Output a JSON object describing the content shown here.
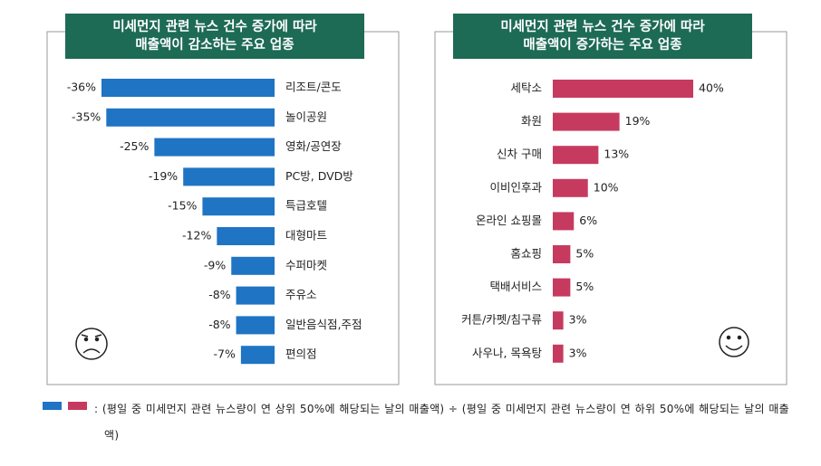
{
  "chart_data": [
    {
      "type": "bar",
      "orientation": "horizontal",
      "title": [
        "미세먼지 관련 뉴스 건수 증가에 따라",
        "매출액이 감소하는 주요 업종"
      ],
      "categories": [
        "리조트/콘도",
        "놀이공원",
        "영화/공연장",
        "PC방, DVD방",
        "특급호텔",
        "대형마트",
        "수퍼마켓",
        "주유소",
        "일반음식점,주점",
        "편의점"
      ],
      "values": [
        -36,
        -35,
        -25,
        -19,
        -15,
        -12,
        -9,
        -8,
        -8,
        -7
      ],
      "value_labels": [
        "-36%",
        "-35%",
        "-25%",
        "-19%",
        "-15%",
        "-12%",
        "-9%",
        "-8%",
        "-8%",
        "-7%"
      ],
      "color": "#1f74c4"
    },
    {
      "type": "bar",
      "orientation": "horizontal",
      "title": [
        "미세먼지 관련 뉴스 건수 증가에 따라",
        "매출액이 증가하는 주요 업종"
      ],
      "categories": [
        "세탁소",
        "화원",
        "신차 구매",
        "이비인후과",
        "온라인 쇼핑몰",
        "홈쇼핑",
        "택배서비스",
        "커튼/카펫/침구류",
        "사우나, 목욕탕"
      ],
      "values": [
        40,
        19,
        13,
        10,
        6,
        5,
        5,
        3,
        3
      ],
      "value_labels": [
        "40%",
        "19%",
        "13%",
        "10%",
        "6%",
        "5%",
        "5%",
        "3%",
        "3%"
      ],
      "color": "#c73a5f"
    }
  ],
  "note": ": (평일 중 미세먼지 관련 뉴스량이 연 상위 50%에 해당되는 날의 매출액) ÷ (평일 중 미세먼지 관련 뉴스량이 연 하위 50%에 해당되는 날의 매출액)"
}
